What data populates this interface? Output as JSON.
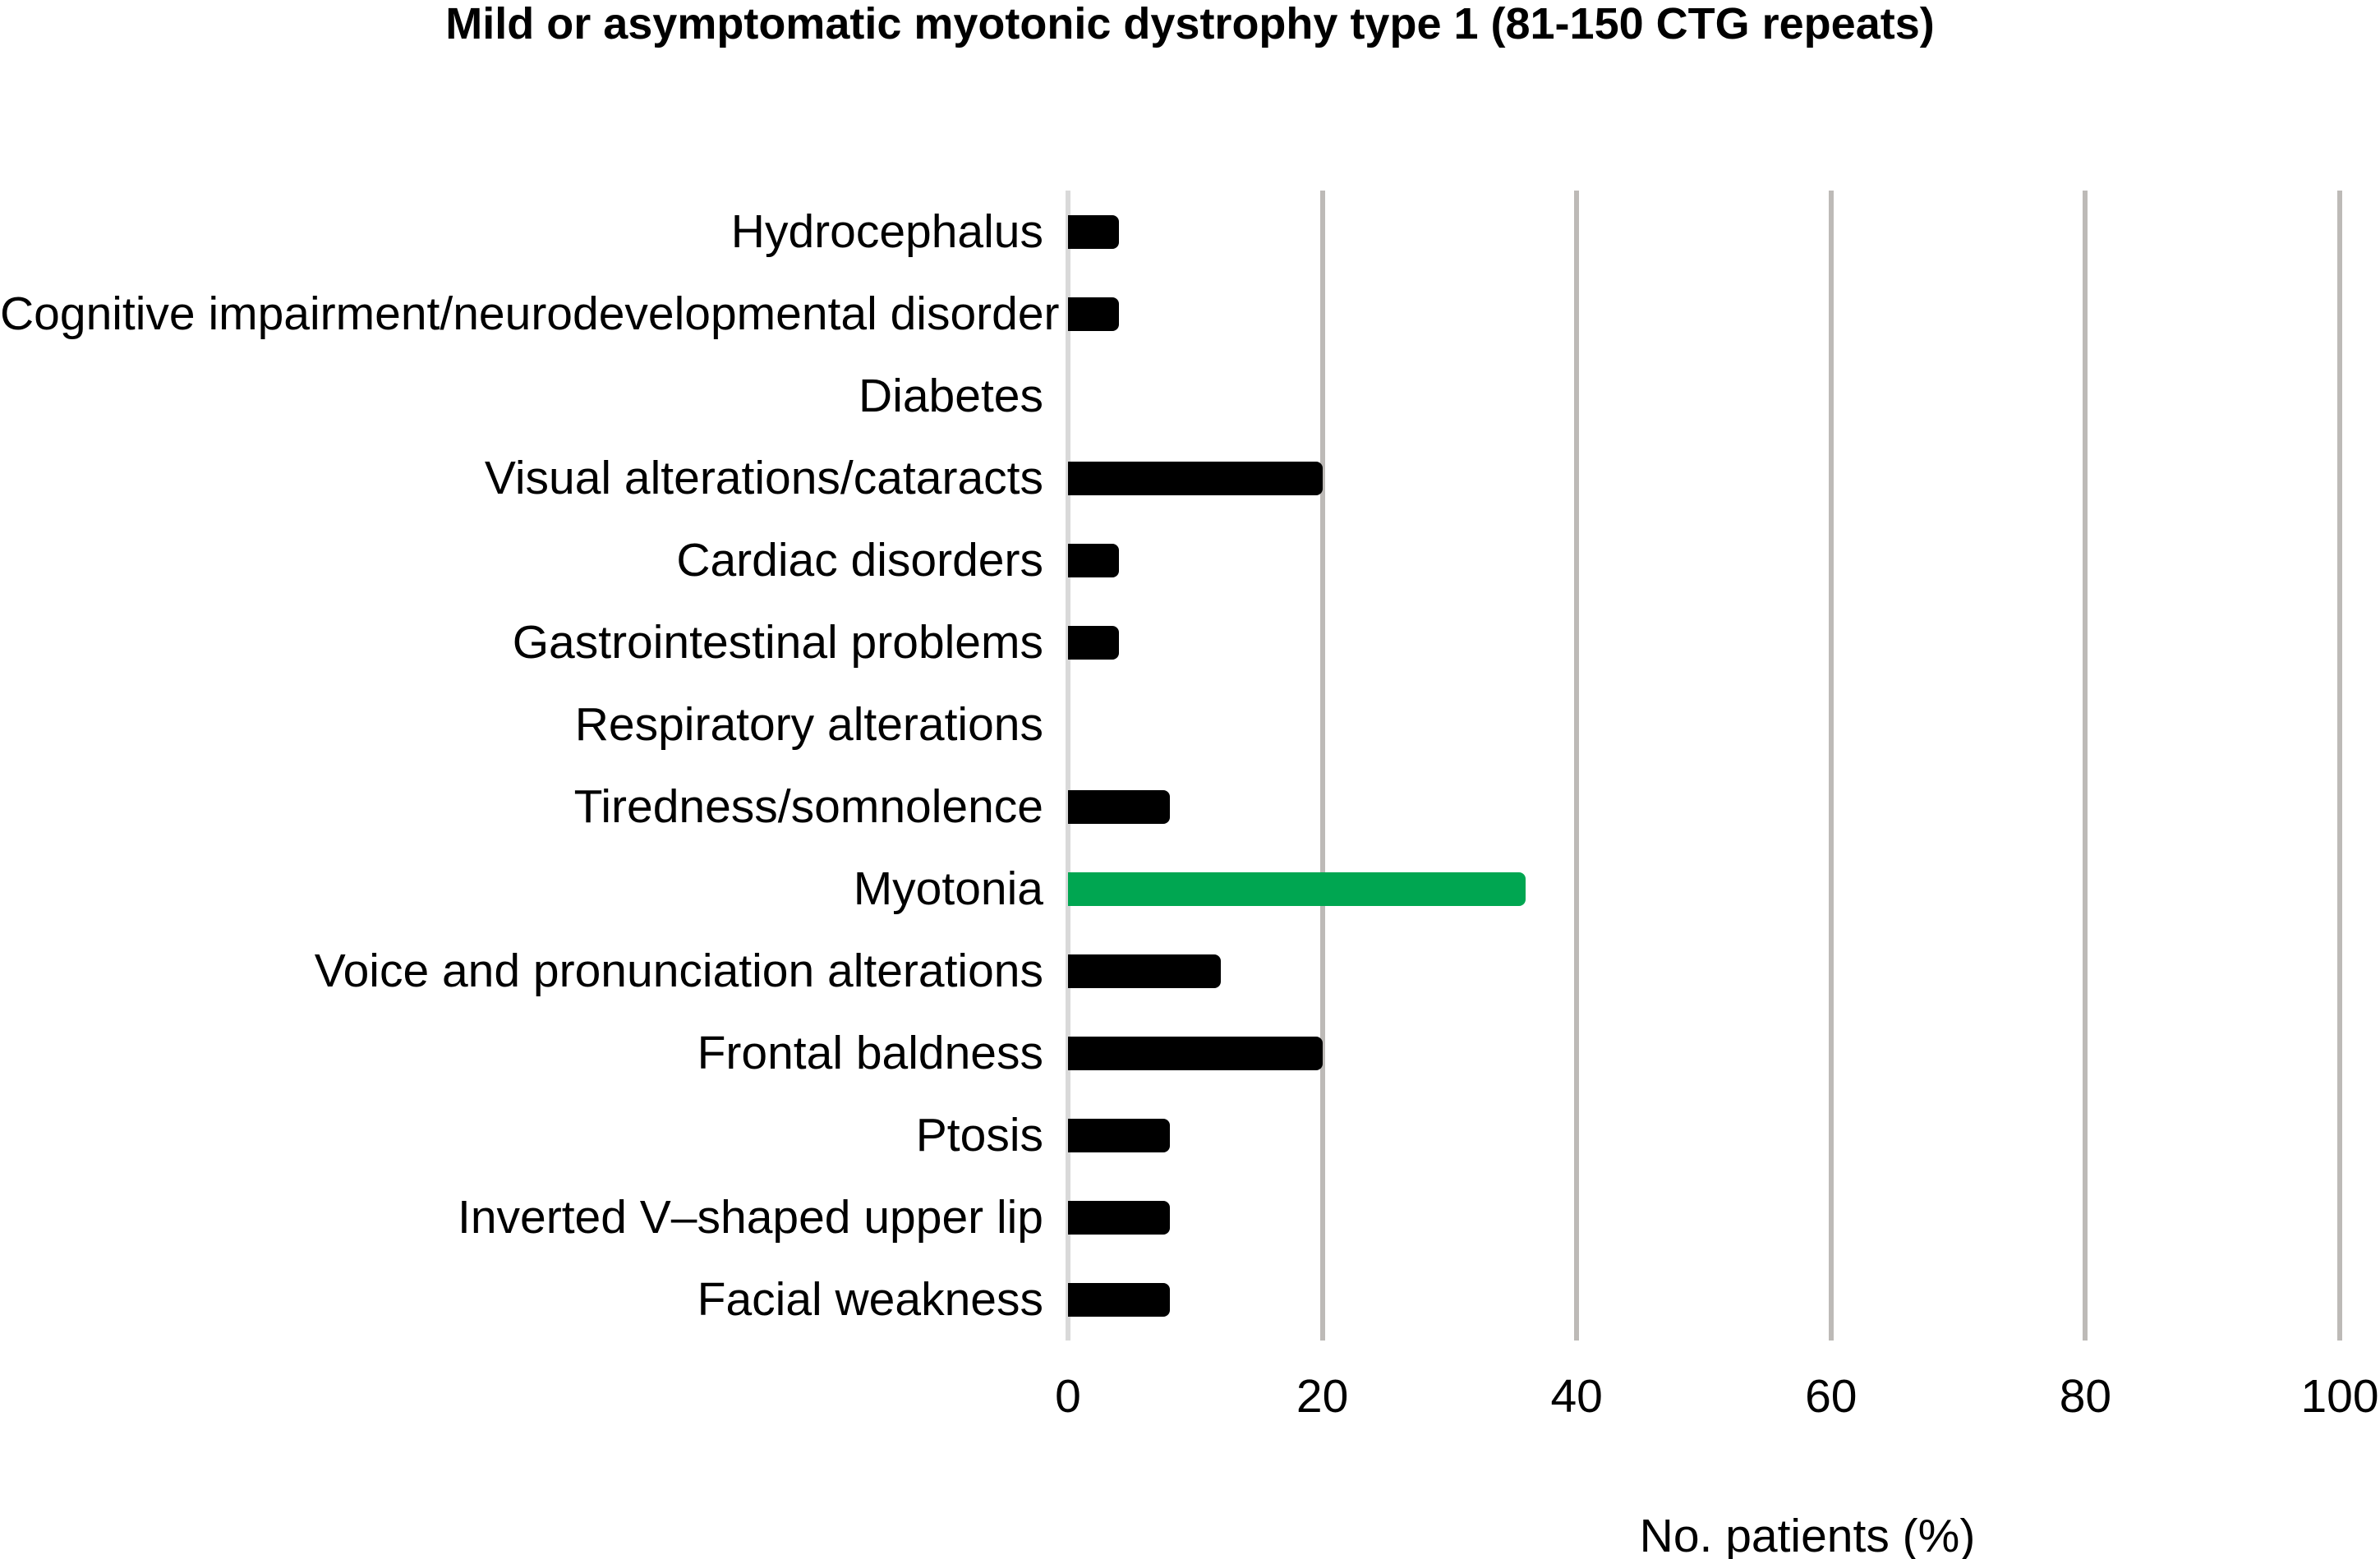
{
  "chart_data": {
    "type": "bar",
    "orientation": "horizontal",
    "title": "Mild or asymptomatic myotonic dystrophy type 1 (81-150 CTG repeats)",
    "xlabel": "No. patients (%)",
    "ylabel": "",
    "xlim": [
      0,
      100
    ],
    "x_ticks": [
      0,
      20,
      40,
      60,
      80,
      100
    ],
    "grid": "vertical-gridlines-on",
    "legend": "none",
    "categories": [
      "Hydrocephalus",
      "Cognitive impairment/neurodevelopmental disorder",
      "Diabetes",
      "Visual alterations/cataracts",
      "Cardiac disorders",
      "Gastrointestinal problems",
      "Respiratory alterations",
      "Tiredness/somnolence",
      "Myotonia",
      "Voice and pronunciation alterations",
      "Frontal baldness",
      "Ptosis",
      "Inverted V–shaped upper lip",
      "Facial weakness"
    ],
    "values": [
      4,
      4,
      0,
      20,
      4,
      4,
      0,
      8,
      36,
      12,
      20,
      8,
      8,
      8
    ],
    "highlighted_category": "Myotonia",
    "colors": {
      "bar_default": "#000000",
      "bar_highlight": "#00A651",
      "gridline": "#BDBAB7",
      "zero_line": "#D9D9D9",
      "text": "#000000"
    }
  }
}
